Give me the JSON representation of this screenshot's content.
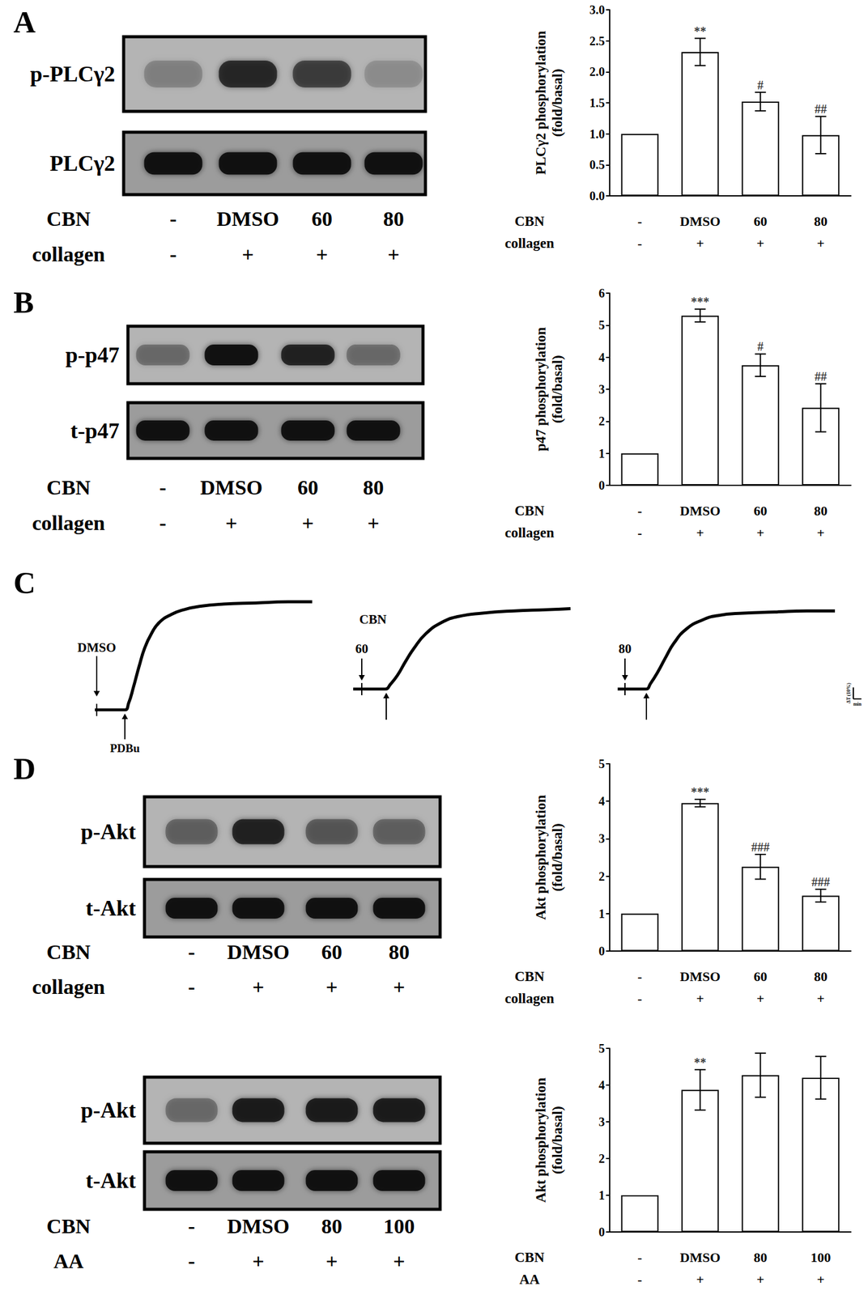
{
  "panel_labels": [
    "A",
    "B",
    "C",
    "D"
  ],
  "blots": [
    {
      "rows": [
        {
          "label": "p-PLCγ2",
          "band_intensity": [
            0.2,
            0.75,
            0.6,
            0.15
          ]
        },
        {
          "label": "PLCγ2",
          "band_intensity": [
            0.95,
            0.95,
            0.95,
            0.95
          ]
        }
      ],
      "lane_rows": [
        {
          "title": "CBN",
          "labels": [
            "-",
            "DMSO",
            "60",
            "80"
          ]
        },
        {
          "title": "collagen",
          "labels": [
            "-",
            "+",
            "+",
            "+"
          ]
        }
      ]
    },
    {
      "rows": [
        {
          "label": "p-p47",
          "band_intensity": [
            0.3,
            0.95,
            0.8,
            0.35
          ]
        },
        {
          "label": "t-p47",
          "band_intensity": [
            0.95,
            0.95,
            0.95,
            0.95
          ]
        }
      ],
      "lane_rows": [
        {
          "title": "CBN",
          "labels": [
            "-",
            "DMSO",
            "60",
            "80"
          ]
        },
        {
          "title": "collagen",
          "labels": [
            "-",
            "+",
            "+",
            "+"
          ]
        }
      ]
    },
    {
      "rows": [
        {
          "label": "p-Akt",
          "band_intensity": [
            0.4,
            0.8,
            0.45,
            0.4
          ]
        },
        {
          "label": "t-Akt",
          "band_intensity": [
            0.95,
            0.95,
            0.95,
            0.95
          ]
        }
      ],
      "lane_rows": [
        {
          "title": "CBN",
          "labels": [
            "-",
            "DMSO",
            "60",
            "80"
          ]
        },
        {
          "title": "collagen",
          "labels": [
            "-",
            "+",
            "+",
            "+"
          ]
        }
      ]
    },
    {
      "rows": [
        {
          "label": "p-Akt",
          "band_intensity": [
            0.3,
            0.85,
            0.85,
            0.85
          ]
        },
        {
          "label": "t-Akt",
          "band_intensity": [
            0.95,
            0.95,
            0.95,
            0.95
          ]
        }
      ],
      "lane_rows": [
        {
          "title": "CBN",
          "labels": [
            "-",
            "DMSO",
            "80",
            "100"
          ]
        },
        {
          "title": "AA",
          "labels": [
            "-",
            "+",
            "+",
            "+"
          ]
        }
      ]
    }
  ],
  "chart_data": [
    {
      "type": "bar",
      "y_label": [
        "PLCγ2 phosphorylation",
        "(fold/basal)"
      ],
      "categories": [
        "-",
        "DMSO",
        "60",
        "80"
      ],
      "category_rows": [
        {
          "title": "CBN",
          "labels": [
            "-",
            "DMSO",
            "60",
            "80"
          ]
        },
        {
          "title": "collagen",
          "labels": [
            "-",
            "+",
            "+",
            "+"
          ]
        }
      ],
      "values": [
        1,
        2.32,
        1.52,
        0.98
      ],
      "errors": [
        0,
        0.22,
        0.15,
        0.3
      ],
      "significance": [
        null,
        "**",
        "#",
        "##"
      ],
      "ylim": [
        0,
        3
      ],
      "yticks": [
        {
          "value": 0,
          "label": "0.0"
        },
        0.5,
        {
          "value": 1,
          "label": "1.0"
        },
        1.5,
        {
          "value": 2,
          "label": "2.0"
        },
        2.5,
        {
          "value": 3,
          "label": "3.0"
        }
      ],
      "color": "#ffffff",
      "grid": false
    },
    {
      "type": "bar",
      "y_label": [
        "p47 phosphorylation",
        "(fold/basal)"
      ],
      "categories": [
        "-",
        "DMSO",
        "60",
        "80"
      ],
      "category_rows": [
        {
          "title": "CBN",
          "labels": [
            "-",
            "DMSO",
            "60",
            "80"
          ]
        },
        {
          "title": "collagen",
          "labels": [
            "-",
            "+",
            "+",
            "+"
          ]
        }
      ],
      "values": [
        1,
        5.3,
        3.75,
        2.42
      ],
      "errors": [
        0,
        0.2,
        0.35,
        0.75
      ],
      "significance": [
        null,
        "***",
        "#",
        "##"
      ],
      "ylim": [
        0,
        6
      ],
      "yticks": [
        0,
        1,
        2,
        3,
        4,
        5,
        6
      ],
      "color": "#ffffff",
      "grid": false
    },
    {
      "type": "line",
      "xlim": [
        0,
        27
      ],
      "ylim": [
        0,
        100
      ],
      "tick_labels": false,
      "color": "#000000",
      "traces": [
        {
          "pretreatment": "DMSO",
          "agonist": "PDBu",
          "x": [
            0,
            3.7,
            4.2,
            4.8,
            5.5,
            6.2,
            7,
            8,
            9.5,
            11,
            13,
            16,
            20,
            24,
            27
          ],
          "y": [
            0,
            0,
            6,
            20,
            38,
            54,
            66,
            76,
            83,
            87,
            90,
            92,
            93,
            94,
            94
          ]
        },
        {
          "group": "CBN",
          "pretreatment": "60",
          "x": [
            0,
            4,
            4.6,
            5.5,
            6.5,
            7.5,
            9,
            11,
            13,
            16,
            20,
            24,
            27
          ],
          "y": [
            0,
            0,
            4,
            12,
            24,
            35,
            48,
            58,
            63,
            66,
            68,
            69,
            70
          ]
        },
        {
          "pretreatment": "80",
          "x": [
            0,
            3.5,
            4.1,
            5,
            6,
            7,
            8.5,
            10.5,
            12.5,
            15.5,
            19.5,
            23.5,
            27
          ],
          "y": [
            0,
            0,
            5,
            15,
            28,
            40,
            52,
            60,
            64,
            66,
            67,
            68,
            68
          ]
        }
      ],
      "scale_bar": {
        "y_label": "ΔT (10%)",
        "x_label": "min",
        "y": 10,
        "x": 1
      }
    },
    {
      "type": "bar",
      "y_label": [
        "Akt phosphorylation",
        "(fold/basal)"
      ],
      "categories": [
        "-",
        "DMSO",
        "60",
        "80"
      ],
      "category_rows": [
        {
          "title": "CBN",
          "labels": [
            "-",
            "DMSO",
            "60",
            "80"
          ]
        },
        {
          "title": "collagen",
          "labels": [
            "-",
            "+",
            "+",
            "+"
          ]
        }
      ],
      "values": [
        1,
        3.95,
        2.25,
        1.48
      ],
      "errors": [
        0,
        0.1,
        0.33,
        0.17
      ],
      "significance": [
        null,
        "***",
        "###",
        "###"
      ],
      "ylim": [
        0,
        5
      ],
      "yticks": [
        0,
        1,
        2,
        3,
        4,
        5
      ],
      "color": "#ffffff",
      "grid": false
    },
    {
      "type": "bar",
      "y_label": [
        "Akt phosphorylation",
        "(fold/basal)"
      ],
      "categories": [
        "-",
        "DMSO",
        "80",
        "100"
      ],
      "category_rows": [
        {
          "title": "CBN",
          "labels": [
            "-",
            "DMSO",
            "80",
            "100"
          ]
        },
        {
          "title": "AA",
          "labels": [
            "-",
            "+",
            "+",
            "+"
          ]
        }
      ],
      "values": [
        1,
        3.87,
        4.27,
        4.2
      ],
      "errors": [
        0,
        0.55,
        0.6,
        0.58
      ],
      "significance": [
        null,
        "**",
        null,
        null
      ],
      "ylim": [
        0,
        5
      ],
      "yticks": [
        0,
        1,
        2,
        3,
        4,
        5
      ],
      "color": "#ffffff",
      "grid": false
    }
  ]
}
